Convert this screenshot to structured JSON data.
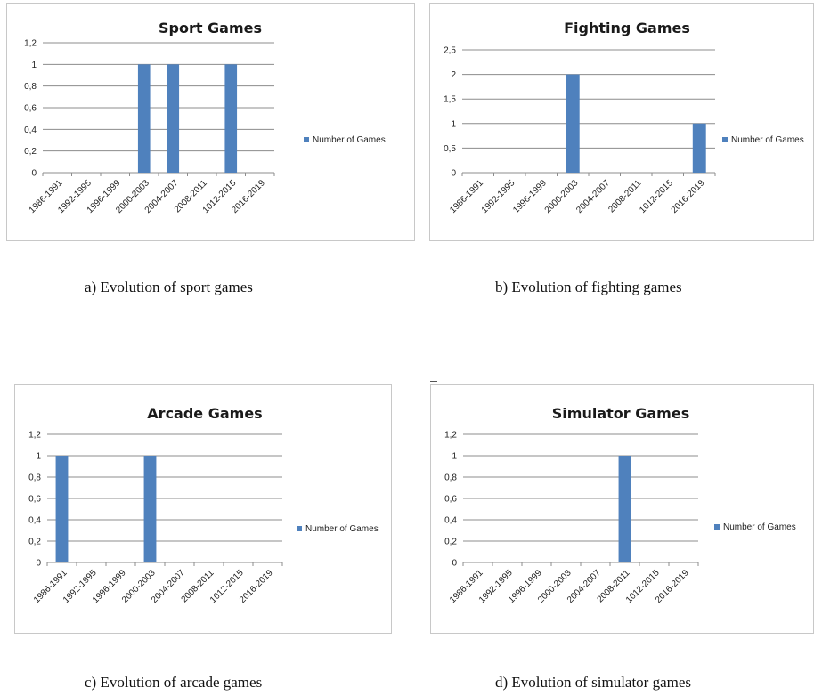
{
  "colors": {
    "bar": "#4F81BD",
    "grid": "#8c8c8c",
    "axis": "#8c8c8c",
    "border": "#c8c8c8"
  },
  "captions": {
    "a": "a) Evolution of sport games",
    "b": "b) Evolution of fighting games",
    "c": "c) Evolution of arcade games",
    "d": "d) Evolution of simulator games"
  },
  "chart_data": [
    {
      "type": "bar",
      "title": "Sport Games",
      "categories": [
        "1986-1991",
        "1992-1995",
        "1996-1999",
        "2000-2003",
        "2004-2007",
        "2008-2011",
        "1012-2015",
        "2016-2019"
      ],
      "series": [
        {
          "name": "Number of Games",
          "values": [
            0,
            0,
            0,
            1,
            1,
            0,
            1,
            0
          ]
        }
      ],
      "yticks": [
        "0",
        "0,2",
        "0,4",
        "0,6",
        "0,8",
        "1",
        "1,2"
      ],
      "ylim": [
        0,
        1.2
      ],
      "legend": "right",
      "grid": true
    },
    {
      "type": "bar",
      "title": "Fighting Games",
      "categories": [
        "1986-1991",
        "1992-1995",
        "1996-1999",
        "2000-2003",
        "2004-2007",
        "2008-2011",
        "1012-2015",
        "2016-2019"
      ],
      "series": [
        {
          "name": "Number of Games",
          "values": [
            0,
            0,
            0,
            2,
            0,
            0,
            0,
            1
          ]
        }
      ],
      "yticks": [
        "0",
        "0,5",
        "1",
        "1,5",
        "2",
        "2,5"
      ],
      "ylim": [
        0,
        2.5
      ],
      "legend": "right",
      "grid": true
    },
    {
      "type": "bar",
      "title": "Arcade Games",
      "categories": [
        "1986-1991",
        "1992-1995",
        "1996-1999",
        "2000-2003",
        "2004-2007",
        "2008-2011",
        "1012-2015",
        "2016-2019"
      ],
      "series": [
        {
          "name": "Number of Games",
          "values": [
            1,
            0,
            0,
            1,
            0,
            0,
            0,
            0
          ]
        }
      ],
      "yticks": [
        "0",
        "0,2",
        "0,4",
        "0,6",
        "0,8",
        "1",
        "1,2"
      ],
      "ylim": [
        0,
        1.2
      ],
      "legend": "right",
      "grid": true
    },
    {
      "type": "bar",
      "title": "Simulator Games",
      "categories": [
        "1986-1991",
        "1992-1995",
        "1996-1999",
        "2000-2003",
        "2004-2007",
        "2008-2011",
        "1012-2015",
        "2016-2019"
      ],
      "series": [
        {
          "name": "Number of Games",
          "values": [
            0,
            0,
            0,
            0,
            0,
            1,
            0,
            0
          ]
        }
      ],
      "yticks": [
        "0",
        "0,2",
        "0,4",
        "0,6",
        "0,8",
        "1",
        "1,2"
      ],
      "ylim": [
        0,
        1.2
      ],
      "legend": "right",
      "grid": true
    }
  ]
}
